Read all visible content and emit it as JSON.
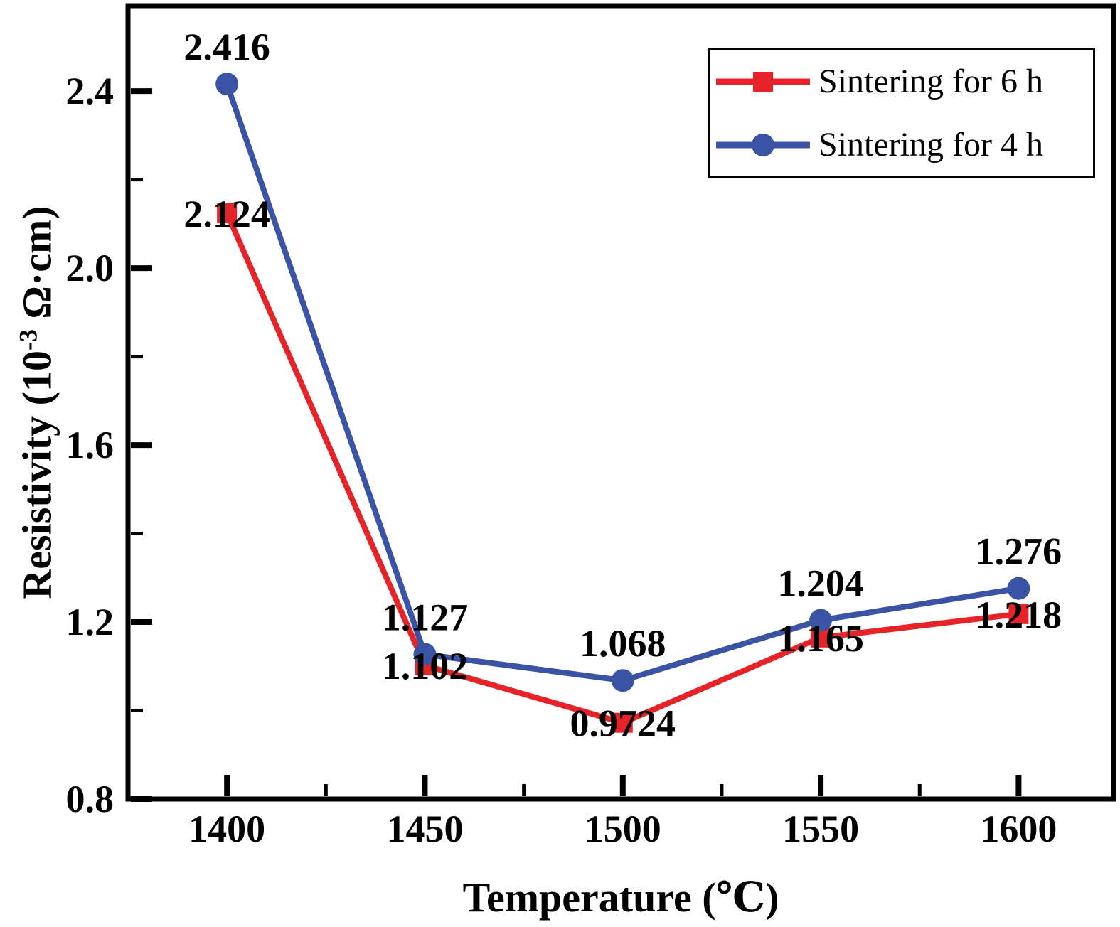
{
  "chart_data": {
    "type": "line",
    "title": "",
    "xlabel": "Temperature (℃)",
    "ylabel": "Resistivity (10⁻³ Ω·cm)",
    "ylabel_parts": {
      "prefix": "Resistivity (10",
      "sup": "-3",
      "suffix": " Ω·cm)"
    },
    "x": [
      1400,
      1450,
      1500,
      1550,
      1600
    ],
    "series": [
      {
        "name": "Sintering for 6 h",
        "color": "#e62328",
        "marker": "square",
        "values": [
          2.124,
          1.102,
          0.9724,
          1.165,
          1.218
        ],
        "point_labels": [
          "2.124",
          "1.102",
          "0.9724",
          "1.165",
          "1.218"
        ],
        "label_dy": 19
      },
      {
        "name": "Sintering for 4 h",
        "color": "#3a53a4",
        "marker": "circle",
        "values": [
          2.416,
          1.127,
          1.068,
          1.204,
          1.276
        ],
        "point_labels": [
          "2.416",
          "1.127",
          "1.068",
          "1.204",
          "1.276"
        ],
        "label_dy": -34
      }
    ],
    "xlim": [
      1375,
      1624
    ],
    "ylim": [
      0.8,
      2.593
    ],
    "x_major_ticks": [
      1400,
      1450,
      1500,
      1550,
      1600
    ],
    "x_tick_labels": [
      "1400",
      "1450",
      "1500",
      "1550",
      "1600"
    ],
    "x_minor_ticks": [
      1425,
      1475,
      1525,
      1575
    ],
    "y_major_ticks": [
      0.8,
      1.2,
      1.6,
      2.0,
      2.4
    ],
    "y_tick_labels": [
      "0.8",
      "1.2",
      "1.6",
      "2.0",
      "2.4"
    ],
    "y_minor_ticks": [
      1.0,
      1.4,
      1.8,
      2.2
    ],
    "grid": false,
    "legend_position": "top-right",
    "axis_color": "#000000",
    "text_color": "#000000",
    "background_color": "#ffffff"
  }
}
